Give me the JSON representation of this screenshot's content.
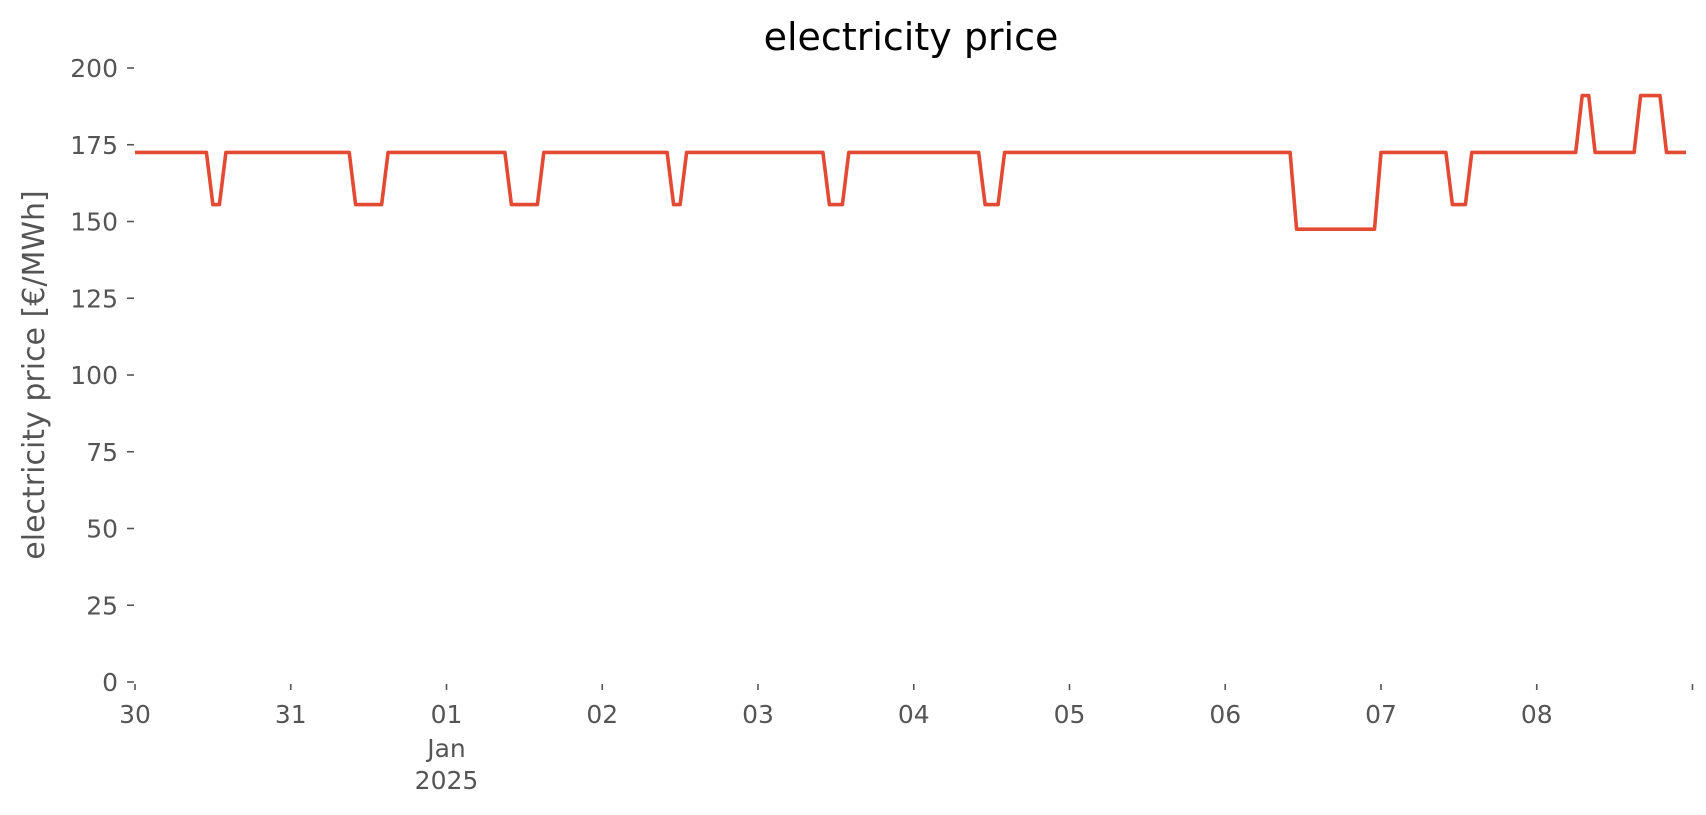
{
  "chart_data": {
    "type": "line",
    "title": "electricity price",
    "xlabel": "",
    "ylabel": "electricity price [€/MWh]",
    "ylim": [
      0,
      200
    ],
    "xlim": [
      "2024-12-30T00:00",
      "2025-01-08T23:00"
    ],
    "grid": false,
    "legend": "none",
    "y_ticks": [
      {
        "value": 0,
        "label": "0"
      },
      {
        "value": 25,
        "label": "25"
      },
      {
        "value": 50,
        "label": "50"
      },
      {
        "value": 75,
        "label": "75"
      },
      {
        "value": 100,
        "label": "100"
      },
      {
        "value": 125,
        "label": "125"
      },
      {
        "value": 150,
        "label": "150"
      },
      {
        "value": 175,
        "label": "175"
      },
      {
        "value": 200,
        "label": "200"
      }
    ],
    "x_ticks": [
      {
        "value": "2024-12-30",
        "label": "30"
      },
      {
        "value": "2024-12-31",
        "label": "31"
      },
      {
        "value": "2025-01-01",
        "label": "01",
        "sublabel": "Jan",
        "sublabel2": "2025"
      },
      {
        "value": "2025-01-02",
        "label": "02"
      },
      {
        "value": "2025-01-03",
        "label": "03"
      },
      {
        "value": "2025-01-04",
        "label": "04"
      },
      {
        "value": "2025-01-05",
        "label": "05"
      },
      {
        "value": "2025-01-06",
        "label": "06"
      },
      {
        "value": "2025-01-07",
        "label": "07"
      },
      {
        "value": "2025-01-08",
        "label": "08"
      },
      {
        "value": "2025-01-09",
        "label": ""
      }
    ],
    "series": [
      {
        "color": "#E24A33",
        "x": [
          "2024-12-30T00:00",
          "2024-12-30T11:00",
          "2024-12-30T12:00",
          "2024-12-30T13:00",
          "2024-12-30T14:00",
          "2024-12-31T09:00",
          "2024-12-31T10:00",
          "2024-12-31T14:00",
          "2024-12-31T15:00",
          "2025-01-01T09:00",
          "2025-01-01T10:00",
          "2025-01-01T14:00",
          "2025-01-01T15:00",
          "2025-01-02T10:00",
          "2025-01-02T11:00",
          "2025-01-02T12:00",
          "2025-01-02T13:00",
          "2025-01-03T10:00",
          "2025-01-03T11:00",
          "2025-01-03T13:00",
          "2025-01-03T14:00",
          "2025-01-04T10:00",
          "2025-01-04T11:00",
          "2025-01-04T13:00",
          "2025-01-04T14:00",
          "2025-01-06T10:00",
          "2025-01-06T11:00",
          "2025-01-06T23:00",
          "2025-01-07T00:00",
          "2025-01-07T10:00",
          "2025-01-07T11:00",
          "2025-01-07T13:00",
          "2025-01-07T14:00",
          "2025-01-08T06:00",
          "2025-01-08T07:00",
          "2025-01-08T08:00",
          "2025-01-08T09:00",
          "2025-01-08T15:00",
          "2025-01-08T16:00",
          "2025-01-08T19:00",
          "2025-01-08T20:00",
          "2025-01-08T23:00"
        ],
        "y": [
          172.5,
          172.5,
          155.5,
          155.5,
          172.5,
          172.5,
          155.5,
          155.5,
          172.5,
          172.5,
          155.5,
          155.5,
          172.5,
          172.5,
          155.5,
          155.5,
          172.5,
          172.5,
          155.5,
          155.5,
          172.5,
          172.5,
          155.5,
          155.5,
          172.5,
          172.5,
          147.5,
          147.5,
          172.5,
          172.5,
          155.5,
          155.5,
          172.5,
          172.5,
          191,
          191,
          172.5,
          172.5,
          191,
          191,
          172.5,
          172.5
        ]
      }
    ]
  }
}
